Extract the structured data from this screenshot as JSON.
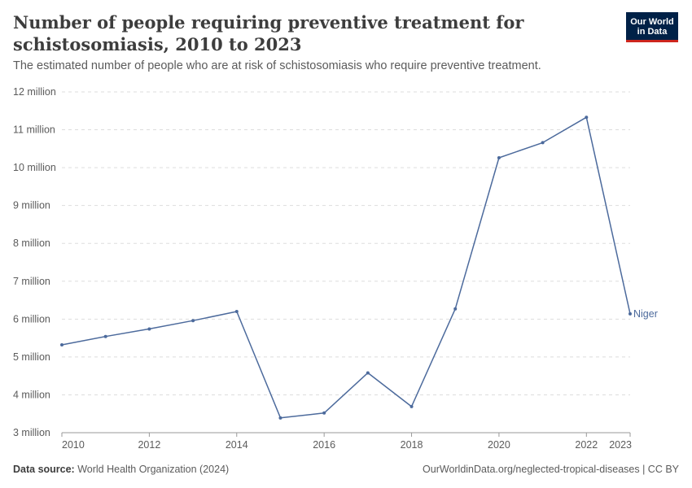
{
  "header": {
    "title": "Number of people requiring preventive treatment for schistosomiasis, 2010 to 2023",
    "subtitle": "The estimated number of people who are at risk of schistosomiasis who require preventive treatment."
  },
  "logo": {
    "line1": "Our World",
    "line2": "in Data"
  },
  "footer": {
    "source_label": "Data source:",
    "source_text": "World Health Organization (2024)",
    "url_text": "OurWorldinData.org/neglected-tropical-diseases | CC BY"
  },
  "colors": {
    "series": "#4c6a9c",
    "grid": "#dddddd",
    "axis": "#999999"
  },
  "chart_data": {
    "type": "line",
    "title": "Number of people requiring preventive treatment for schistosomiasis, 2010 to 2023",
    "xlabel": "",
    "ylabel": "",
    "xlim": [
      2010,
      2023
    ],
    "ylim": [
      3000000,
      12000000
    ],
    "x_ticks": [
      2010,
      2012,
      2014,
      2016,
      2018,
      2020,
      2022,
      2023
    ],
    "y_ticks": [
      3000000,
      4000000,
      5000000,
      6000000,
      7000000,
      8000000,
      9000000,
      10000000,
      11000000,
      12000000
    ],
    "y_tick_labels": [
      "3 million",
      "4 million",
      "5 million",
      "6 million",
      "7 million",
      "8 million",
      "9 million",
      "10 million",
      "11 million",
      "12 million"
    ],
    "grid": true,
    "series": [
      {
        "name": "Niger",
        "x": [
          2010,
          2011,
          2012,
          2013,
          2014,
          2015,
          2016,
          2017,
          2018,
          2019,
          2020,
          2021,
          2022,
          2023
        ],
        "values": [
          5320000,
          5540000,
          5740000,
          5960000,
          6200000,
          3390000,
          3520000,
          4580000,
          3690000,
          6270000,
          10260000,
          10660000,
          11330000,
          6140000
        ]
      }
    ]
  }
}
